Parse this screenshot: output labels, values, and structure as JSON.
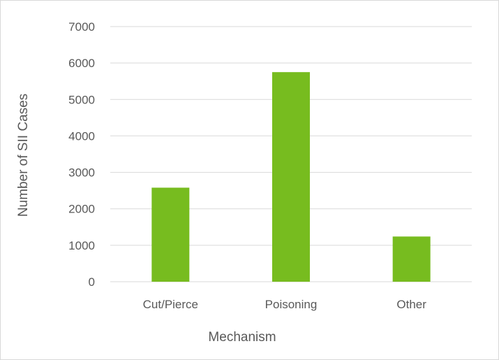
{
  "chart_data": {
    "type": "bar",
    "title": "",
    "xlabel": "Mechanism",
    "ylabel": "Number of SII Cases",
    "categories": [
      "Cut/Pierce",
      "Poisoning",
      "Other"
    ],
    "values": [
      2580,
      5750,
      1240
    ],
    "ylim": [
      0,
      7000
    ],
    "yticks": [
      0,
      1000,
      2000,
      3000,
      4000,
      5000,
      6000,
      7000
    ],
    "grid": true,
    "legend": "none",
    "bar_color": "#77bc1f",
    "grid_color": "#d9d9d9",
    "text_color": "#595959"
  }
}
